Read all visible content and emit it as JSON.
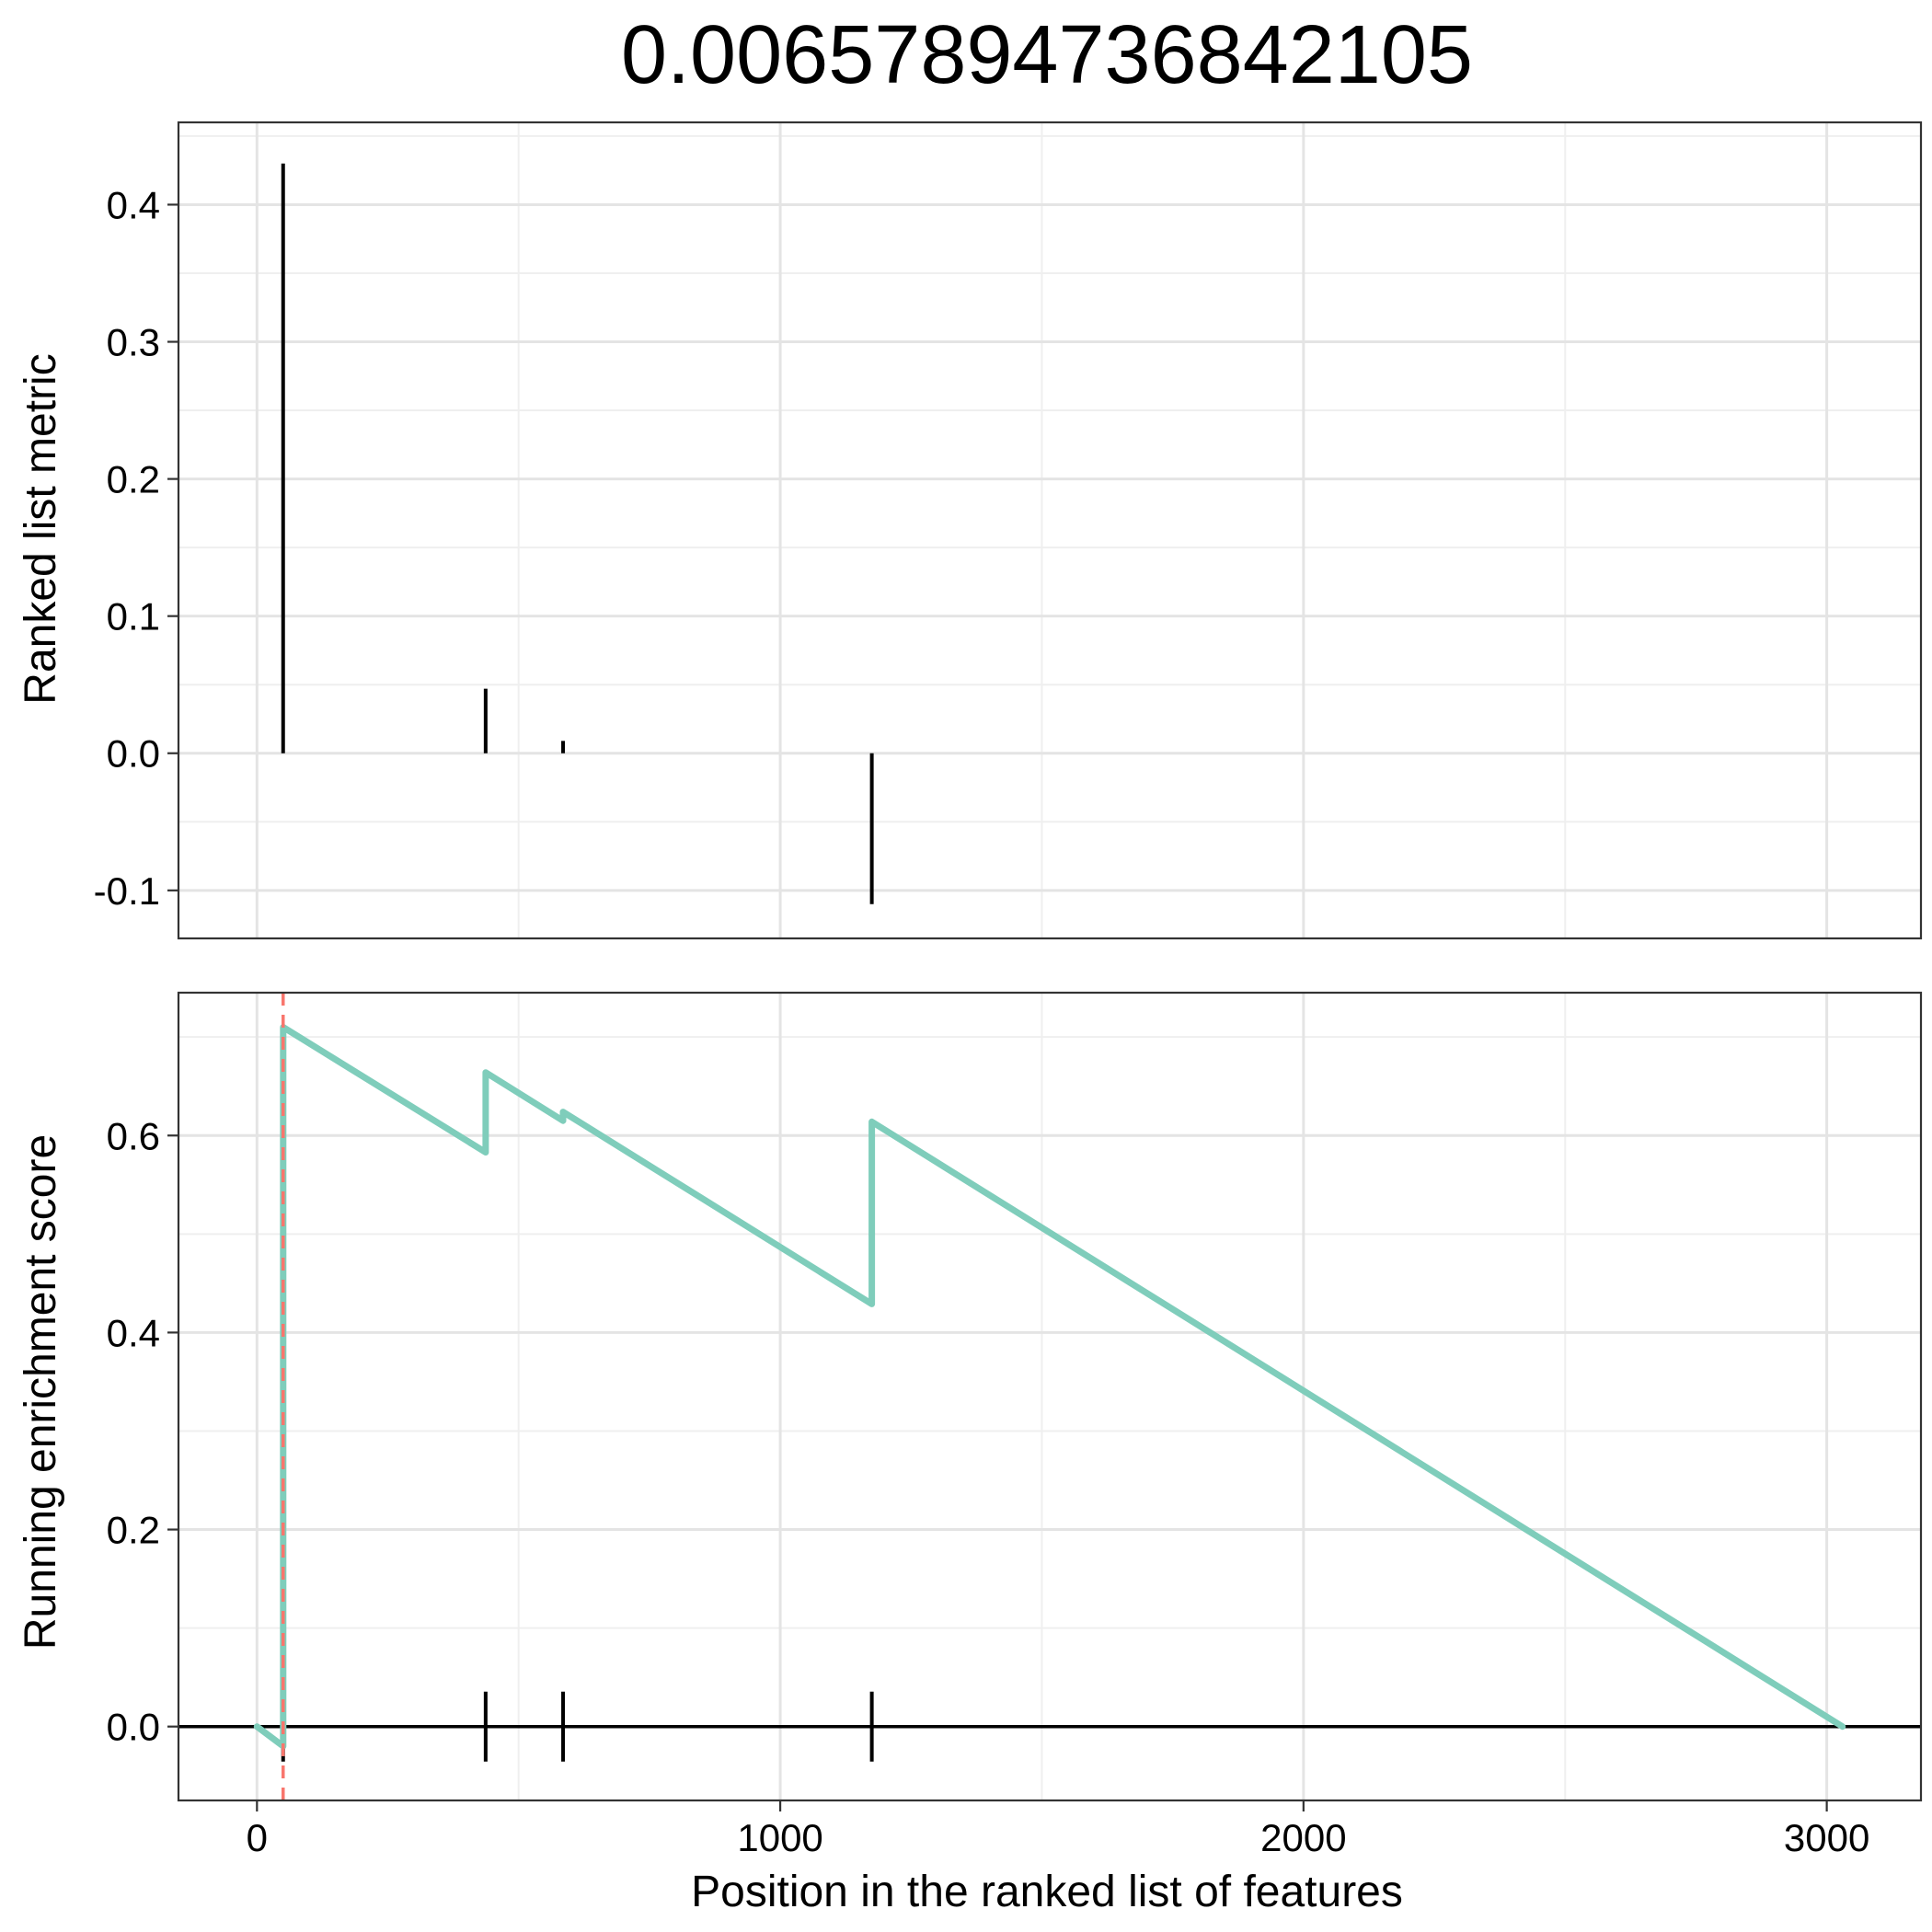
{
  "chart_data": {
    "title": "0.00657894736842105",
    "type": "line",
    "xlabel": "Position in the ranked list of features",
    "xlim": [
      -150,
      3180
    ],
    "xticks": [
      0,
      1000,
      2000,
      3000
    ],
    "xtick_labels": [
      "0",
      "1000",
      "2000",
      "3000"
    ],
    "grid": true,
    "panels": [
      {
        "id": "ranked-metric",
        "type": "bar",
        "ylabel": "Ranked list metric",
        "ylim": [
          -0.135,
          0.46
        ],
        "yticks": [
          -0.1,
          0.0,
          0.1,
          0.2,
          0.3,
          0.4
        ],
        "ytick_labels": [
          "-0.1",
          "0.0",
          "0.1",
          "0.2",
          "0.3",
          "0.4"
        ],
        "color": "#000000",
        "bars": [
          {
            "x": 50,
            "value": 0.43
          },
          {
            "x": 437,
            "value": 0.047
          },
          {
            "x": 585,
            "value": 0.009
          },
          {
            "x": 1175,
            "value": -0.11
          }
        ]
      },
      {
        "id": "running-es",
        "type": "line",
        "ylabel": "Running enrichment score",
        "ylim": [
          -0.075,
          0.745
        ],
        "yticks": [
          0.0,
          0.2,
          0.4,
          0.6
        ],
        "ytick_labels": [
          "0.0",
          "0.2",
          "0.4",
          "0.6"
        ],
        "line_color": "#7fcdbb",
        "series": [
          {
            "x": [
              0,
              50,
              50,
              437,
              437,
              585,
              585,
              1175,
              1175,
              3030
            ],
            "y": [
              0.0,
              -0.02,
              0.71,
              0.583,
              0.664,
              0.615,
              0.624,
              0.429,
              0.614,
              0.0
            ]
          }
        ],
        "hit_positions": [
          50,
          437,
          585,
          1175
        ],
        "max_deviation_x": 50,
        "max_deviation_color": "#f8766d",
        "zero_line": true
      }
    ]
  }
}
